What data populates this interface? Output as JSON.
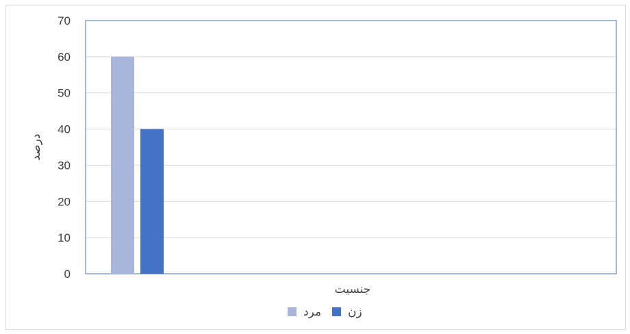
{
  "chart_data": {
    "type": "bar",
    "categories": [
      "جنسیت"
    ],
    "series": [
      {
        "name": "مرد",
        "values": [
          60
        ],
        "color": "#a9b6db"
      },
      {
        "name": "زن",
        "values": [
          40
        ],
        "color": "#4472c4"
      }
    ],
    "title": "",
    "xlabel": "جنسیت",
    "ylabel": "درصد",
    "ylim": [
      0,
      70
    ],
    "yticks": [
      0,
      10,
      20,
      30,
      40,
      50,
      60,
      70
    ],
    "grid": true,
    "legend": "bottom"
  },
  "colors": {
    "grid": "#d9d9d9",
    "plot_border": "#4472c4",
    "text": "#404040"
  }
}
